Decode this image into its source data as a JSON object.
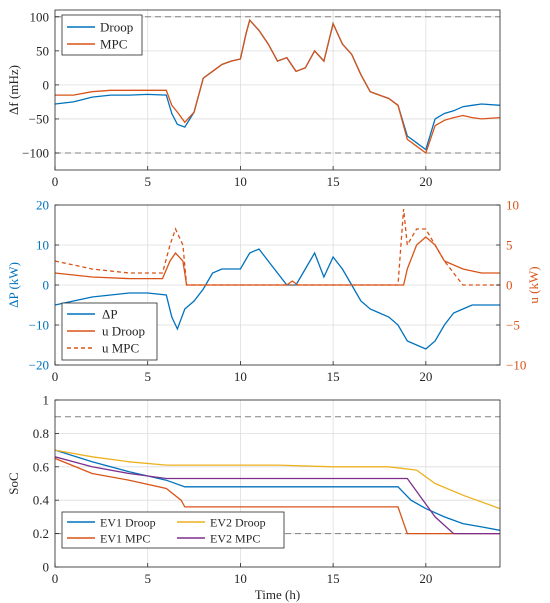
{
  "colors": {
    "blue": "#0072BD",
    "orange": "#D95319",
    "olive": "#EDB120",
    "purple": "#7E2F8E",
    "grid": "#dddddd",
    "ref": "#808080"
  },
  "chart_data": [
    {
      "type": "line",
      "ylabel": "Δf (mHz)",
      "xlim": [
        0,
        24
      ],
      "ylim": [
        -125,
        110
      ],
      "xticks": [
        0,
        5,
        10,
        15,
        20
      ],
      "yticks": [
        -100,
        -50,
        0,
        50,
        100
      ],
      "grid": true,
      "legend": "top-left",
      "ref_lines": [
        100,
        -100
      ],
      "series": [
        {
          "name": "Droop",
          "x": [
            0,
            1,
            2,
            3,
            4,
            5,
            6,
            6.3,
            6.6,
            7,
            7.5,
            8,
            8.5,
            9,
            9.5,
            10,
            10.3,
            10.5,
            11,
            11.5,
            12,
            12.5,
            13,
            13.5,
            14,
            14.5,
            15,
            15.5,
            16,
            16.5,
            17,
            17.5,
            18,
            18.5,
            19,
            19.5,
            20,
            20.5,
            21,
            21.5,
            22,
            22.5,
            23,
            24
          ],
          "y": [
            -28,
            -25,
            -18,
            -15,
            -15,
            -14,
            -15,
            -42,
            -58,
            -62,
            -40,
            10,
            20,
            30,
            35,
            38,
            75,
            95,
            80,
            60,
            35,
            40,
            20,
            25,
            50,
            35,
            90,
            60,
            45,
            15,
            -10,
            -15,
            -20,
            -30,
            -75,
            -85,
            -95,
            -50,
            -42,
            -38,
            -32,
            -30,
            -28,
            -30
          ]
        },
        {
          "name": "MPC",
          "x": [
            0,
            1,
            2,
            3,
            4,
            5,
            6,
            6.3,
            6.6,
            7,
            7.5,
            8,
            8.5,
            9,
            9.5,
            10,
            10.3,
            10.5,
            11,
            11.5,
            12,
            12.5,
            13,
            13.5,
            14,
            14.5,
            15,
            15.5,
            16,
            16.5,
            17,
            17.5,
            18,
            18.5,
            19,
            19.5,
            20,
            20.5,
            21,
            21.5,
            22,
            22.5,
            23,
            24
          ],
          "y": [
            -15,
            -15,
            -10,
            -8,
            -8,
            -8,
            -8,
            -30,
            -40,
            -55,
            -40,
            10,
            20,
            30,
            35,
            38,
            75,
            95,
            80,
            60,
            35,
            40,
            20,
            25,
            50,
            35,
            90,
            60,
            45,
            15,
            -10,
            -15,
            -20,
            -30,
            -80,
            -90,
            -100,
            -60,
            -52,
            -48,
            -45,
            -48,
            -50,
            -48
          ]
        }
      ]
    },
    {
      "type": "line",
      "ylabel": "ΔP (kW)",
      "ylabel_right": "u (kW)",
      "xlim": [
        0,
        24
      ],
      "ylim": [
        -20,
        20
      ],
      "ylim_right": [
        -10,
        10
      ],
      "xticks": [
        0,
        5,
        10,
        15,
        20
      ],
      "yticks": [
        -20,
        -10,
        0,
        10,
        20
      ],
      "yticks_right": [
        -10,
        -5,
        0,
        5,
        10
      ],
      "grid": true,
      "legend": "bottom-left",
      "series": [
        {
          "name": "ΔP",
          "axis": "left",
          "x": [
            0,
            1,
            2,
            3,
            4,
            5,
            6,
            6.3,
            6.6,
            7,
            7.5,
            8,
            8.5,
            9,
            9.5,
            10,
            10.5,
            11,
            11.5,
            12,
            12.5,
            13,
            13.5,
            14,
            14.5,
            15,
            15.5,
            16,
            16.5,
            17,
            17.5,
            18,
            18.5,
            19,
            19.5,
            20,
            20.5,
            21,
            21.5,
            22,
            22.5,
            23,
            24
          ],
          "y": [
            -5,
            -4,
            -3,
            -2.5,
            -2,
            -2,
            -2.5,
            -8,
            -11,
            -6,
            -4,
            -1,
            3,
            4,
            4,
            4,
            8,
            9,
            6,
            3,
            0,
            0,
            4,
            8,
            2,
            7,
            4,
            0,
            -4,
            -6,
            -7,
            -8,
            -10,
            -14,
            -15,
            -16,
            -14,
            -10,
            -7,
            -6,
            -5,
            -5,
            -5
          ]
        },
        {
          "name": "u Droop",
          "axis": "right",
          "x": [
            0,
            2,
            4,
            5,
            5.8,
            6.2,
            6.5,
            6.9,
            7.1,
            12.5,
            12.8,
            13.1,
            18.8,
            19.0,
            19.5,
            20,
            20.5,
            21,
            22,
            23,
            24
          ],
          "y": [
            1.5,
            1,
            0.8,
            0.8,
            0.8,
            3,
            4,
            3,
            0,
            0,
            0.5,
            0,
            0,
            2,
            5,
            6,
            5,
            3,
            2,
            1.5,
            1.5
          ]
        },
        {
          "name": "u MPC",
          "axis": "right",
          "x": [
            0,
            2,
            4,
            5,
            5.8,
            6.2,
            6.5,
            6.9,
            7.1,
            18.5,
            18.8,
            19.0,
            19.5,
            20,
            20.5,
            21,
            22,
            23,
            24
          ],
          "y": [
            3,
            2,
            1.5,
            1.5,
            1.5,
            5,
            7,
            5,
            0,
            0,
            9.5,
            5,
            7,
            7,
            5,
            3,
            0,
            0,
            0
          ]
        }
      ]
    },
    {
      "type": "line",
      "xlabel": "Time (h)",
      "ylabel": "SoC",
      "xlim": [
        0,
        24
      ],
      "ylim": [
        0,
        1
      ],
      "xticks": [
        0,
        5,
        10,
        15,
        20
      ],
      "yticks": [
        0,
        0.2,
        0.4,
        0.6,
        0.8,
        1
      ],
      "grid": true,
      "legend": "bottom-left",
      "ref_lines": [
        0.9,
        0.2
      ],
      "series": [
        {
          "name": "EV1 Droop",
          "x": [
            0,
            2,
            4,
            6,
            7,
            15,
            18.5,
            19.2,
            20,
            21,
            22,
            23,
            24
          ],
          "y": [
            0.7,
            0.63,
            0.57,
            0.52,
            0.48,
            0.48,
            0.48,
            0.4,
            0.35,
            0.3,
            0.26,
            0.24,
            0.22
          ]
        },
        {
          "name": "EV1 MPC",
          "x": [
            0,
            2,
            4,
            6,
            6.8,
            7,
            12,
            18.5,
            19.0,
            19.5,
            20,
            24
          ],
          "y": [
            0.65,
            0.56,
            0.52,
            0.47,
            0.4,
            0.36,
            0.36,
            0.36,
            0.2,
            0.2,
            0.2,
            0.2
          ]
        },
        {
          "name": "EV2 Droop",
          "x": [
            0,
            2,
            4,
            6,
            8,
            12,
            15,
            18,
            19.5,
            20.5,
            22,
            24
          ],
          "y": [
            0.7,
            0.66,
            0.63,
            0.61,
            0.61,
            0.61,
            0.6,
            0.6,
            0.58,
            0.5,
            0.43,
            0.35
          ]
        },
        {
          "name": "EV2 MPC",
          "x": [
            0,
            2,
            4,
            6,
            8,
            12,
            16,
            19,
            20.5,
            21.5,
            24
          ],
          "y": [
            0.66,
            0.6,
            0.56,
            0.53,
            0.53,
            0.53,
            0.53,
            0.53,
            0.3,
            0.2,
            0.2
          ]
        }
      ]
    }
  ]
}
